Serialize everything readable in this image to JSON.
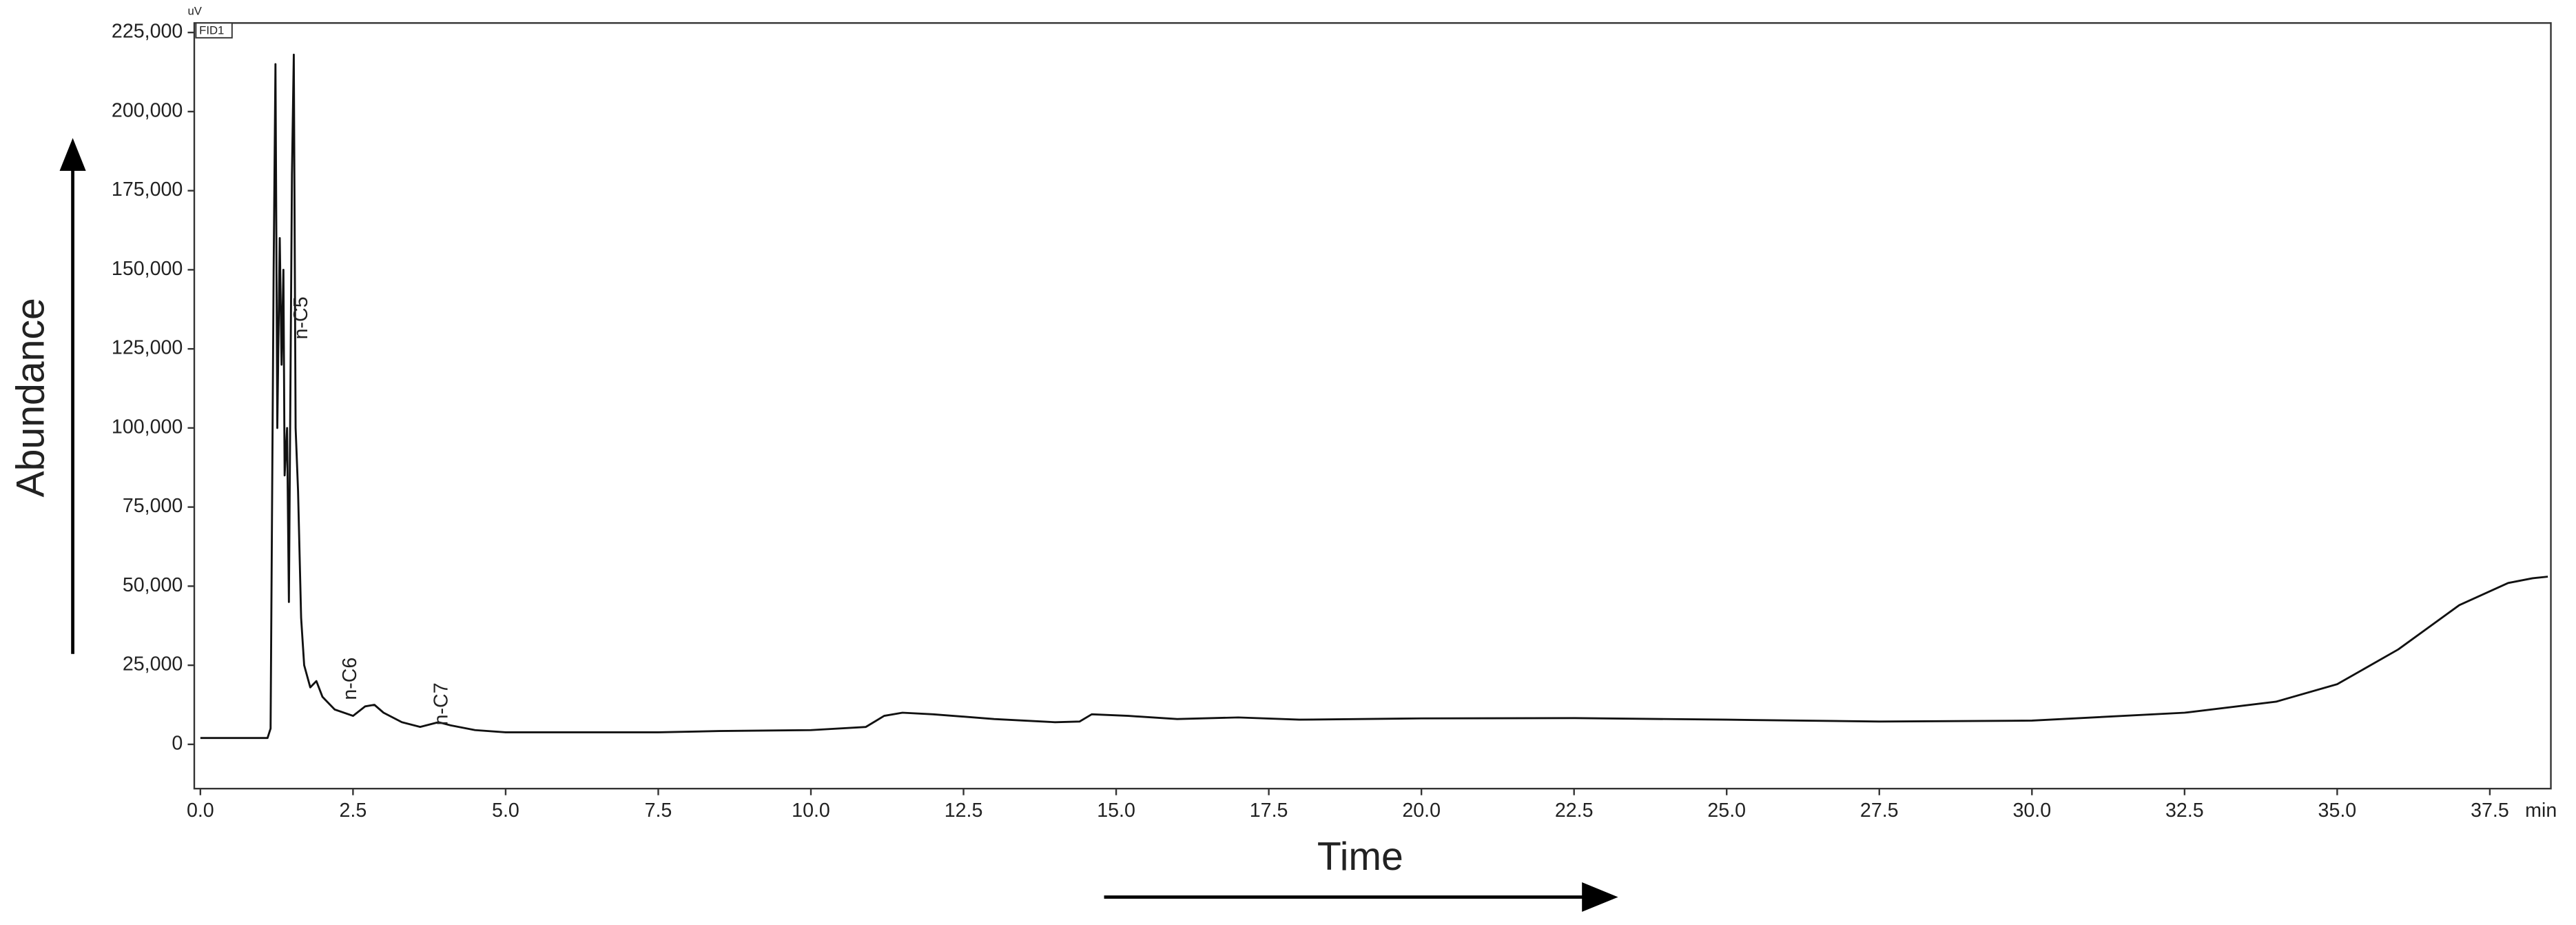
{
  "chart_data": {
    "type": "line",
    "xlabel": "Time",
    "ylabel": "Abundance",
    "y_unit": "uV",
    "detector": "FID1",
    "x_unit": "min",
    "color": "#111111",
    "xlim": [
      -0.1,
      38.5
    ],
    "ylim": [
      -14000,
      228000
    ],
    "xticks": [
      {
        "value": 0,
        "label": "0.0"
      },
      {
        "value": 2.5,
        "label": "2.5"
      },
      {
        "value": 5,
        "label": "5.0"
      },
      {
        "value": 7.5,
        "label": "7.5"
      },
      {
        "value": 10,
        "label": "10.0"
      },
      {
        "value": 12.5,
        "label": "12.5"
      },
      {
        "value": 15,
        "label": "15.0"
      },
      {
        "value": 17.5,
        "label": "17.5"
      },
      {
        "value": 20,
        "label": "20.0"
      },
      {
        "value": 22.5,
        "label": "22.5"
      },
      {
        "value": 25,
        "label": "25.0"
      },
      {
        "value": 27.5,
        "label": "27.5"
      },
      {
        "value": 30,
        "label": "30.0"
      },
      {
        "value": 32.5,
        "label": "32.5"
      },
      {
        "value": 35,
        "label": "35.0"
      },
      {
        "value": 37.5,
        "label": "37.5"
      }
    ],
    "yticks": [
      0,
      {
        "value": 25000,
        "label": "25,000"
      },
      {
        "value": 50000,
        "label": "50,000"
      },
      {
        "value": 75000,
        "label": "75,000"
      },
      {
        "value": 100000,
        "label": "100,000"
      },
      {
        "value": 125000,
        "label": "125,000"
      },
      {
        "value": 150000,
        "label": "150,000"
      },
      {
        "value": 175000,
        "label": "175,000"
      },
      {
        "value": 200000,
        "label": "200,000"
      },
      {
        "value": 225000,
        "label": "225,000"
      }
    ],
    "annotations": [
      "n-C5",
      "n-C6",
      "n-C7"
    ],
    "x": [
      0,
      1.1,
      1.15,
      1.2,
      1.23,
      1.26,
      1.3,
      1.33,
      1.36,
      1.38,
      1.42,
      1.45,
      1.5,
      1.53,
      1.56,
      1.6,
      1.65,
      1.7,
      1.8,
      1.9,
      2.0,
      2.2,
      2.5,
      2.7,
      2.85,
      3.0,
      3.3,
      3.6,
      3.9,
      4.1,
      4.5,
      5,
      7.5,
      8.5,
      10,
      10.9,
      11.2,
      11.5,
      12,
      13,
      14,
      14.4,
      14.6,
      15.2,
      16,
      17,
      18,
      20,
      22.5,
      25,
      27.5,
      30,
      32.5,
      34,
      35,
      36,
      37,
      37.8,
      38.2,
      38.45
    ],
    "values": [
      2000,
      2000,
      5000,
      150000,
      215000,
      100000,
      160000,
      120000,
      150000,
      85000,
      100000,
      45000,
      180000,
      218000,
      100000,
      80000,
      40000,
      25000,
      18000,
      20000,
      15000,
      11000,
      9000,
      12000,
      12500,
      10000,
      7000,
      5500,
      7000,
      6000,
      4500,
      3800,
      3800,
      4200,
      4500,
      5500,
      9000,
      10000,
      9500,
      8000,
      7000,
      7200,
      9500,
      9000,
      8000,
      8500,
      7800,
      8200,
      8300,
      7800,
      7200,
      7500,
      10000,
      13500,
      19000,
      30000,
      44000,
      51000,
      52500,
      53000
    ]
  }
}
